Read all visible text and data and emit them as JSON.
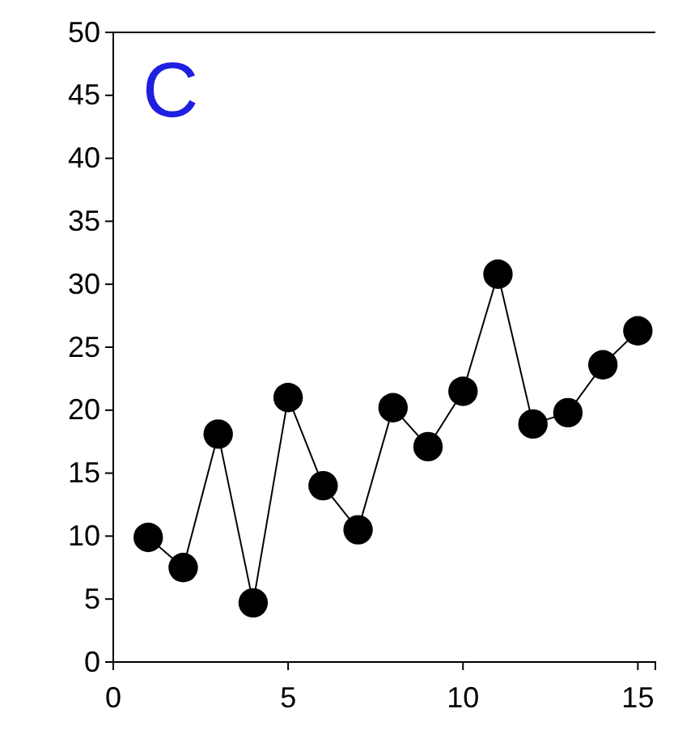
{
  "chart_data": {
    "type": "line",
    "x": [
      1,
      2,
      3,
      4,
      5,
      6,
      7,
      8,
      9,
      10,
      11,
      12,
      13,
      14,
      15
    ],
    "series": [
      {
        "color": "#000000",
        "values": [
          9.9,
          7.5,
          18.1,
          4.7,
          21.0,
          14.0,
          10.5,
          20.2,
          17.1,
          21.5,
          30.8,
          18.9,
          19.8,
          23.6,
          26.3
        ]
      }
    ],
    "xlim": [
      0,
      15.5
    ],
    "xticks": [
      0,
      5,
      10,
      15
    ],
    "ylim": [
      0,
      50
    ],
    "yticks": [
      0,
      5,
      10,
      15,
      20,
      25,
      30,
      35,
      40,
      45,
      50
    ],
    "annotations": [
      "C"
    ],
    "marker": "circle",
    "line_style": "solid",
    "grid": false
  }
}
